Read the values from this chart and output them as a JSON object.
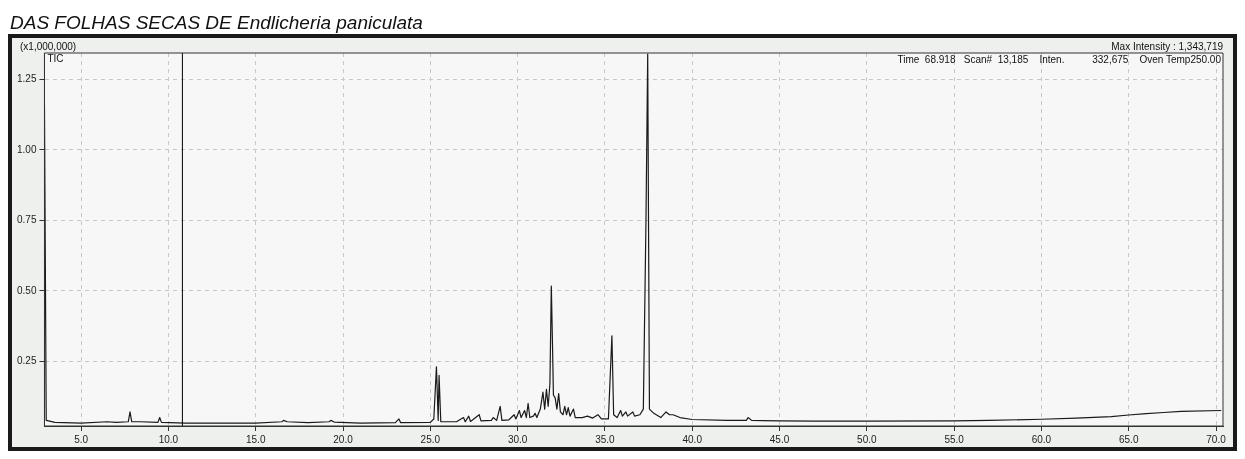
{
  "chart_data": {
    "type": "line",
    "title": "DAS FOLHAS SECAS DE Endlicheria paniculata",
    "ylabel": "(x1,000,000)",
    "annotations": [
      "TIC",
      "Max Intensity : 1,343,719",
      "Time  68.918   Scan#  13,185    Inten.          332,675    Oven Temp250.00"
    ],
    "xlim": [
      2.9,
      70.4
    ],
    "ylim": [
      0.02,
      1.344
    ],
    "xticks": [
      {
        "value": 5,
        "label": "5.0"
      },
      {
        "value": 10,
        "label": "10.0"
      },
      {
        "value": 15,
        "label": "15.0"
      },
      {
        "value": 20,
        "label": "20.0"
      },
      {
        "value": 25,
        "label": "25.0"
      },
      {
        "value": 30,
        "label": "30.0"
      },
      {
        "value": 35,
        "label": "35.0"
      },
      {
        "value": 40,
        "label": "40.0"
      },
      {
        "value": 45,
        "label": "45.0"
      },
      {
        "value": 50,
        "label": "50.0"
      },
      {
        "value": 55,
        "label": "55.0"
      },
      {
        "value": 60,
        "label": "60.0"
      },
      {
        "value": 65,
        "label": "65.0"
      },
      {
        "value": 70,
        "label": "70.0"
      }
    ],
    "yticks": [
      0.25,
      {
        "value": 0.5,
        "label": "0.50"
      },
      0.75,
      {
        "value": 1,
        "label": "1.00"
      },
      1.25
    ],
    "grid": true,
    "marker": "none",
    "line_style": "solid",
    "ref_lines": [
      {
        "axis": "x",
        "value": 10.8,
        "color": "#000000"
      }
    ],
    "series": [
      {
        "color": "#1a1a1a",
        "x": [
          2.9,
          3.0,
          3.5,
          5,
          6.5,
          7.0,
          7.7,
          7.8,
          7.9,
          8.4,
          9.4,
          9.5,
          9.6,
          11,
          13,
          15,
          16.5,
          16.6,
          16.8,
          18,
          19.2,
          19.3,
          19.5,
          21,
          23.0,
          23.2,
          23.3,
          25.0,
          25.2,
          25.35,
          25.45,
          25.5,
          25.6,
          26.5,
          26.9,
          27.0,
          27.2,
          27.3,
          27.8,
          27.9,
          28.5,
          28.6,
          28.8,
          29.0,
          29.1,
          29.5,
          29.8,
          29.9,
          30.1,
          30.2,
          30.4,
          30.5,
          30.6,
          30.7,
          30.9,
          31.0,
          31.1,
          31.3,
          31.45,
          31.55,
          31.65,
          31.75,
          31.85,
          31.93,
          32.0,
          32.05,
          32.15,
          32.25,
          32.35,
          32.45,
          32.6,
          32.7,
          32.8,
          32.9,
          33.0,
          33.2,
          33.3,
          33.7,
          34.0,
          34.3,
          34.6,
          34.8,
          35.2,
          35.4,
          35.5,
          35.7,
          35.9,
          36.0,
          36.2,
          36.3,
          36.6,
          36.7,
          37.0,
          37.2,
          37.35,
          37.45,
          37.55,
          37.8,
          38.2,
          38.5,
          38.7,
          38.9,
          39.3,
          40,
          42,
          43.1,
          43.2,
          43.4,
          45,
          47,
          50,
          55,
          57,
          60,
          62,
          64,
          65,
          66,
          67,
          68,
          70.3
        ],
        "values": [
          1.16,
          0.04,
          0.033,
          0.03,
          0.035,
          0.033,
          0.035,
          0.07,
          0.035,
          0.035,
          0.033,
          0.05,
          0.033,
          0.03,
          0.03,
          0.03,
          0.035,
          0.04,
          0.035,
          0.032,
          0.035,
          0.04,
          0.034,
          0.03,
          0.032,
          0.045,
          0.032,
          0.033,
          0.045,
          0.23,
          0.04,
          0.2,
          0.035,
          0.035,
          0.05,
          0.035,
          0.055,
          0.036,
          0.06,
          0.038,
          0.04,
          0.05,
          0.04,
          0.09,
          0.04,
          0.042,
          0.06,
          0.045,
          0.075,
          0.05,
          0.075,
          0.05,
          0.1,
          0.05,
          0.055,
          0.065,
          0.05,
          0.08,
          0.14,
          0.08,
          0.15,
          0.09,
          0.17,
          0.517,
          0.3,
          0.13,
          0.12,
          0.08,
          0.135,
          0.07,
          0.06,
          0.09,
          0.06,
          0.085,
          0.055,
          0.08,
          0.05,
          0.05,
          0.055,
          0.048,
          0.06,
          0.045,
          0.045,
          0.34,
          0.06,
          0.05,
          0.075,
          0.055,
          0.07,
          0.055,
          0.07,
          0.055,
          0.06,
          0.08,
          0.743,
          1.34,
          0.08,
          0.065,
          0.05,
          0.07,
          0.06,
          0.06,
          0.05,
          0.043,
          0.04,
          0.04,
          0.05,
          0.04,
          0.038,
          0.037,
          0.037,
          0.038,
          0.04,
          0.044,
          0.048,
          0.053,
          0.059,
          0.064,
          0.068,
          0.072,
          0.075
        ]
      }
    ]
  }
}
